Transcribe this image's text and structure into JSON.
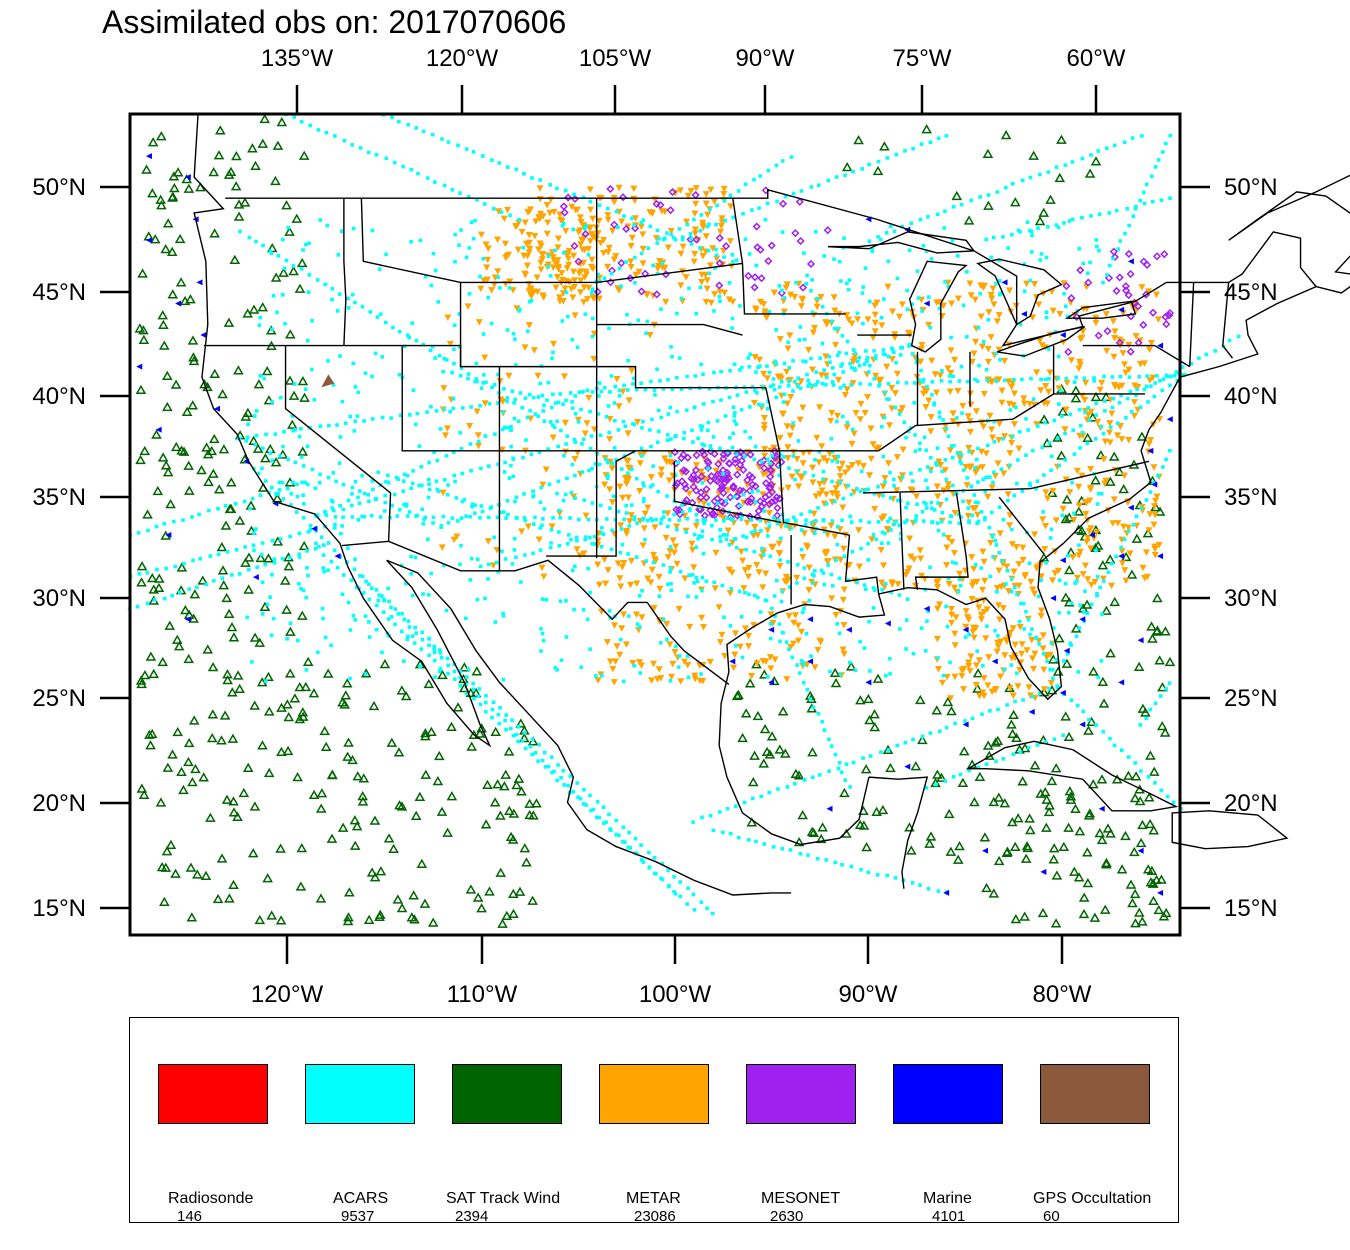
{
  "title": "Assimilated obs on: 2017070606",
  "map": {
    "top_lon_labels": [
      "135°W",
      "120°W",
      "105°W",
      "90°W",
      "75°W",
      "60°W"
    ],
    "bottom_lon_labels": [
      "120°W",
      "110°W",
      "100°W",
      "90°W",
      "80°W"
    ],
    "left_lat_labels": [
      "50°N",
      "45°N",
      "40°N",
      "35°N",
      "30°N",
      "25°N",
      "20°N",
      "15°N"
    ],
    "right_lat_labels": [
      "50°N",
      "45°N",
      "40°N",
      "35°N",
      "30°N",
      "25°N",
      "20°N",
      "15°N"
    ],
    "lon_range": [
      -128,
      -74
    ],
    "lat_range": [
      14,
      53
    ]
  },
  "legend": [
    {
      "name": "Radiosonde",
      "count": "146",
      "color": "#ff0000"
    },
    {
      "name": "ACARS",
      "count": "9537",
      "color": "#00ffff"
    },
    {
      "name": "SAT Track Wind",
      "count": "2394",
      "color": "#006400"
    },
    {
      "name": "METAR",
      "count": "23086",
      "color": "#ffa500"
    },
    {
      "name": "MESONET",
      "count": "2630",
      "color": "#a020f0"
    },
    {
      "name": "Marine",
      "count": "4101",
      "color": "#0000ff"
    },
    {
      "name": "GPS Occultation",
      "count": "60",
      "color": "#8b5a3c"
    }
  ]
}
